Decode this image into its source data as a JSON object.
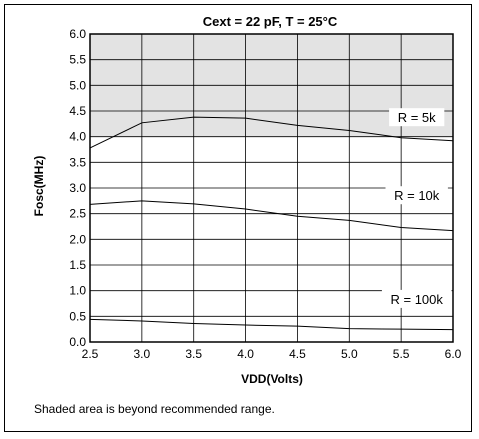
{
  "chart_data": {
    "type": "line",
    "title": "Cext = 22 pF, T = 25°C",
    "xlabel": "VDD(Volts)",
    "ylabel": "Fosc(MHz)",
    "xlim": [
      2.5,
      6.0
    ],
    "ylim": [
      0.0,
      6.0
    ],
    "xticks": [
      "2.5",
      "3.0",
      "3.5",
      "4.0",
      "4.5",
      "5.0",
      "5.5",
      "6.0"
    ],
    "yticks": [
      "0.0",
      "0.5",
      "1.0",
      "1.5",
      "2.0",
      "2.5",
      "3.0",
      "3.5",
      "4.0",
      "4.5",
      "5.0",
      "5.5",
      "6.0"
    ],
    "grid": true,
    "shaded_region": {
      "y_from": 4.0,
      "y_to": 6.0,
      "color": "#e3e3e3"
    },
    "series": [
      {
        "name": "R = 5k",
        "x": [
          2.5,
          3.0,
          3.5,
          4.0,
          4.5,
          5.0,
          5.5,
          6.0
        ],
        "y": [
          3.78,
          4.27,
          4.38,
          4.36,
          4.22,
          4.12,
          3.98,
          3.92
        ]
      },
      {
        "name": "R = 10k",
        "x": [
          2.5,
          3.0,
          3.5,
          4.0,
          4.5,
          5.0,
          5.5,
          6.0
        ],
        "y": [
          2.68,
          2.75,
          2.69,
          2.59,
          2.45,
          2.37,
          2.23,
          2.17
        ]
      },
      {
        "name": "R = 100k",
        "x": [
          2.5,
          3.0,
          3.5,
          4.0,
          4.5,
          5.0,
          5.5,
          6.0
        ],
        "y": [
          0.44,
          0.41,
          0.36,
          0.33,
          0.31,
          0.26,
          0.25,
          0.24
        ]
      }
    ]
  },
  "footnote": "Shaded area is beyond recommended range."
}
